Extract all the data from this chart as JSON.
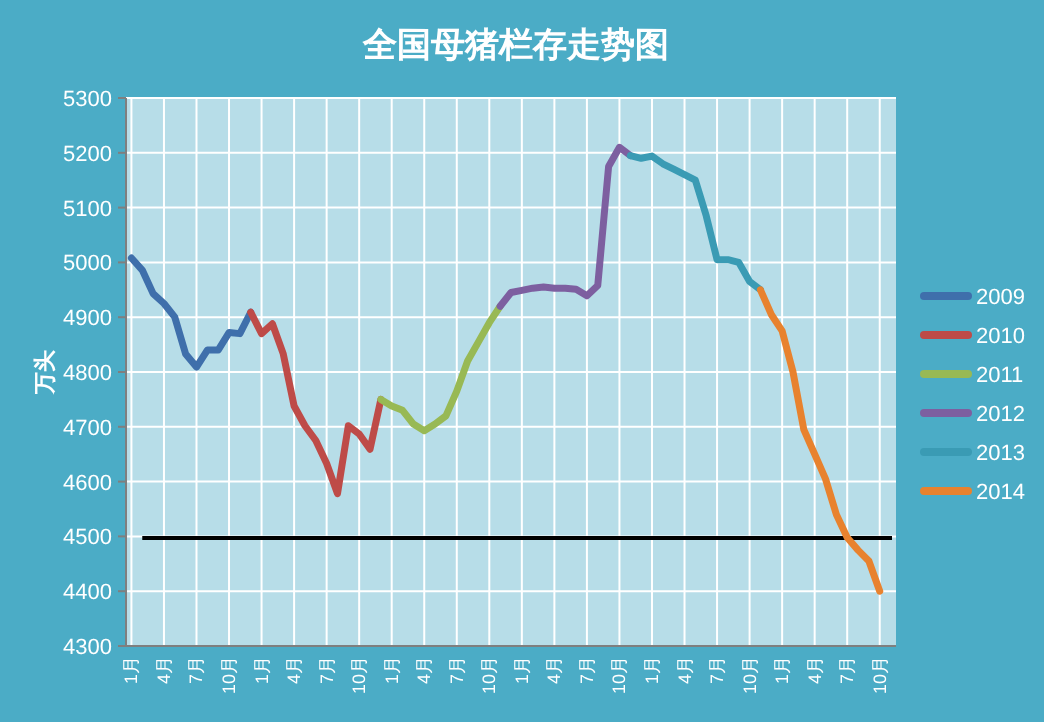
{
  "chart_data": {
    "type": "line",
    "title": "全国母猪栏存走势图",
    "ylabel": "万头",
    "categories": [
      "1月",
      null,
      null,
      "4月",
      null,
      null,
      "7月",
      null,
      null,
      "10月",
      null,
      null,
      "1月",
      null,
      null,
      "4月",
      null,
      null,
      "7月",
      null,
      null,
      "10月",
      null,
      null,
      "1月",
      null,
      null,
      "4月",
      null,
      null,
      "7月",
      null,
      null,
      "10月",
      null,
      null,
      "1月",
      null,
      null,
      "4月",
      null,
      null,
      "7月",
      null,
      null,
      "10月",
      null,
      null,
      "1月",
      null,
      null,
      "4月",
      null,
      null,
      "7月",
      null,
      null,
      "10月",
      null,
      null,
      "1月",
      null,
      null,
      "4月",
      null,
      null,
      "7月",
      null,
      null,
      "10月",
      null
    ],
    "ylim": [
      4300,
      5300
    ],
    "yticks": [
      4300,
      4400,
      4500,
      4600,
      4700,
      4800,
      4900,
      5000,
      5100,
      5200,
      5300
    ],
    "grid": true,
    "legend": "right",
    "line_style": "solid",
    "marker": "none",
    "ref_lines": [
      {
        "axis": "y",
        "value": 4497,
        "color": "#000000"
      }
    ],
    "series": [
      {
        "name": "2009",
        "color": "#3f6fab",
        "values": [
          5008,
          4986,
          4943,
          4925,
          4900,
          4833,
          4809,
          4840,
          4840,
          4872,
          4870,
          4909,
          null,
          null,
          null,
          null,
          null,
          null,
          null,
          null,
          null,
          null,
          null,
          null,
          null,
          null,
          null,
          null,
          null,
          null,
          null,
          null,
          null,
          null,
          null,
          null,
          null,
          null,
          null,
          null,
          null,
          null,
          null,
          null,
          null,
          null,
          null,
          null,
          null,
          null,
          null,
          null,
          null,
          null,
          null,
          null,
          null,
          null,
          null,
          null,
          null,
          null,
          null,
          null,
          null,
          null,
          null,
          null,
          null,
          null,
          null
        ]
      },
      {
        "name": "2010",
        "color": "#be4b48",
        "values": [
          null,
          null,
          null,
          null,
          null,
          null,
          null,
          null,
          null,
          null,
          null,
          4909,
          4870,
          4888,
          4833,
          4738,
          4702,
          4675,
          4633,
          4578,
          4702,
          4687,
          4659,
          4750,
          null,
          null,
          null,
          null,
          null,
          null,
          null,
          null,
          null,
          null,
          null,
          null,
          null,
          null,
          null,
          null,
          null,
          null,
          null,
          null,
          null,
          null,
          null,
          null,
          null,
          null,
          null,
          null,
          null,
          null,
          null,
          null,
          null,
          null,
          null,
          null,
          null,
          null,
          null,
          null,
          null,
          null,
          null,
          null,
          null,
          null,
          null
        ]
      },
      {
        "name": "2011",
        "color": "#98b954",
        "values": [
          null,
          null,
          null,
          null,
          null,
          null,
          null,
          null,
          null,
          null,
          null,
          null,
          null,
          null,
          null,
          null,
          null,
          null,
          null,
          null,
          null,
          null,
          null,
          4750,
          4738,
          4730,
          4705,
          4693,
          4705,
          4720,
          4765,
          4820,
          4855,
          4890,
          4920,
          null,
          null,
          null,
          null,
          null,
          null,
          null,
          null,
          null,
          null,
          null,
          null,
          null,
          null,
          null,
          null,
          null,
          null,
          null,
          null,
          null,
          null,
          null,
          null,
          null,
          null,
          null,
          null,
          null,
          null,
          null,
          null,
          null,
          null,
          null,
          null
        ]
      },
      {
        "name": "2012",
        "color": "#7d5fa0",
        "values": [
          null,
          null,
          null,
          null,
          null,
          null,
          null,
          null,
          null,
          null,
          null,
          null,
          null,
          null,
          null,
          null,
          null,
          null,
          null,
          null,
          null,
          null,
          null,
          null,
          null,
          null,
          null,
          null,
          null,
          null,
          null,
          null,
          null,
          null,
          4920,
          4945,
          4949,
          4953,
          4955,
          4953,
          4953,
          4951,
          4939,
          4958,
          5175,
          5210,
          5195,
          null,
          null,
          null,
          null,
          null,
          null,
          null,
          null,
          null,
          null,
          null,
          null,
          null,
          null,
          null,
          null,
          null,
          null,
          null,
          null,
          null,
          null,
          null,
          null
        ]
      },
      {
        "name": "2013",
        "color": "#3a9bb4",
        "values": [
          null,
          null,
          null,
          null,
          null,
          null,
          null,
          null,
          null,
          null,
          null,
          null,
          null,
          null,
          null,
          null,
          null,
          null,
          null,
          null,
          null,
          null,
          null,
          null,
          null,
          null,
          null,
          null,
          null,
          null,
          null,
          null,
          null,
          null,
          null,
          null,
          null,
          null,
          null,
          null,
          null,
          null,
          null,
          null,
          null,
          null,
          5195,
          5190,
          5194,
          5180,
          5170,
          5160,
          5150,
          5085,
          5005,
          5005,
          5000,
          4965,
          4950,
          null,
          null,
          null,
          null,
          null,
          null,
          null,
          null,
          null,
          null,
          null,
          null
        ]
      },
      {
        "name": "2014",
        "color": "#e8822e",
        "values": [
          null,
          null,
          null,
          null,
          null,
          null,
          null,
          null,
          null,
          null,
          null,
          null,
          null,
          null,
          null,
          null,
          null,
          null,
          null,
          null,
          null,
          null,
          null,
          null,
          null,
          null,
          null,
          null,
          null,
          null,
          null,
          null,
          null,
          null,
          null,
          null,
          null,
          null,
          null,
          null,
          null,
          null,
          null,
          null,
          null,
          null,
          null,
          null,
          null,
          null,
          null,
          null,
          null,
          null,
          null,
          null,
          null,
          null,
          4950,
          4905,
          4875,
          4800,
          4695,
          4650,
          4605,
          4540,
          4498,
          4475,
          4455,
          4400,
          null
        ]
      }
    ]
  }
}
